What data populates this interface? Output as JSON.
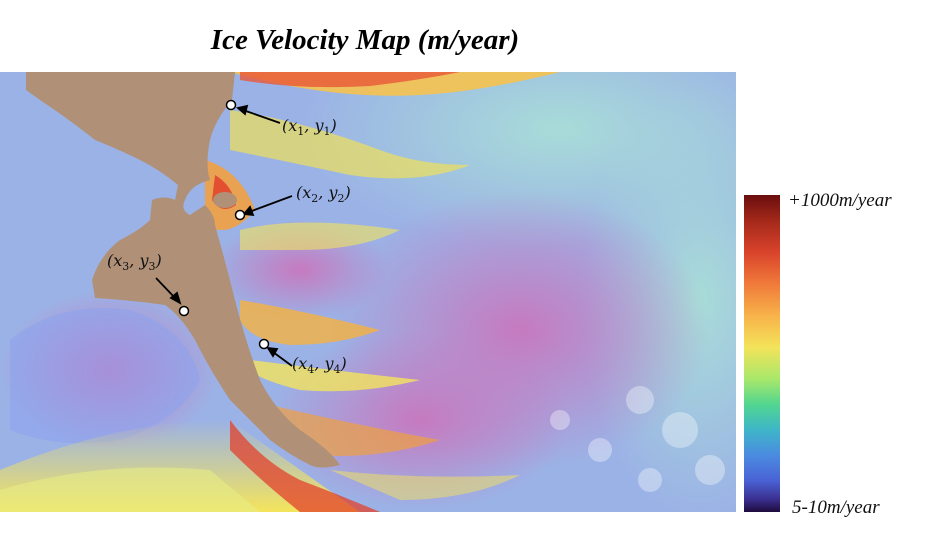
{
  "title": "Ice Velocity Map (m/year)",
  "points": [
    {
      "name": "x1y1",
      "x": "x",
      "y": "y",
      "sub": "1"
    },
    {
      "name": "x2y2",
      "x": "x",
      "y": "y",
      "sub": "2"
    },
    {
      "name": "x3y3",
      "x": "x",
      "y": "y",
      "sub": "3"
    },
    {
      "name": "x4y4",
      "x": "x",
      "y": "y",
      "sub": "4"
    }
  ],
  "colorbar": {
    "max_label": "+1000m/year",
    "min_label": "5-10m/year"
  },
  "colors": {
    "land": "#b09178",
    "slow": "#c97fb8",
    "medium": "#9bb0e8",
    "fast": "#f0a040",
    "fastest": "#e2412c"
  }
}
